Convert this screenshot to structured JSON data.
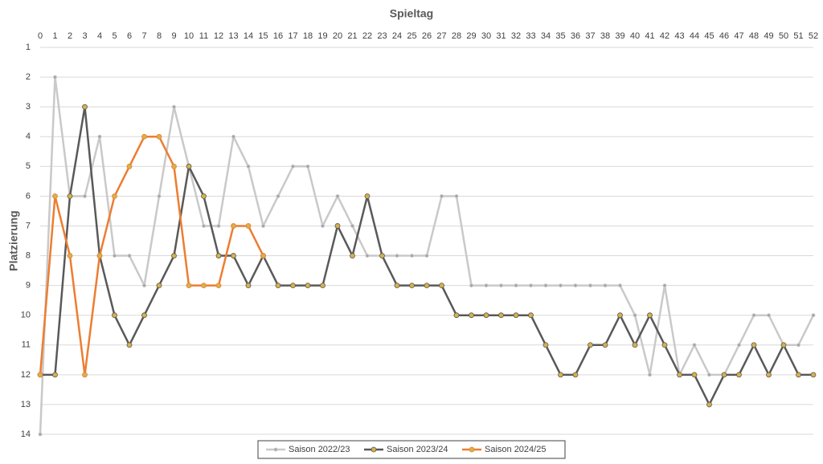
{
  "chart_data": {
    "type": "line",
    "title": "Spieltag",
    "y_label": "Platzierung",
    "x": [
      0,
      1,
      2,
      3,
      4,
      5,
      6,
      7,
      8,
      9,
      10,
      11,
      12,
      13,
      14,
      15,
      16,
      17,
      18,
      19,
      20,
      21,
      22,
      23,
      24,
      25,
      26,
      27,
      28,
      29,
      30,
      31,
      32,
      33,
      34,
      35,
      36,
      37,
      38,
      39,
      40,
      41,
      42,
      43,
      44,
      45,
      46,
      47,
      48,
      49,
      50,
      51,
      52
    ],
    "xlim": [
      0,
      52
    ],
    "xticks": [
      0,
      1,
      2,
      3,
      4,
      5,
      6,
      7,
      8,
      9,
      10,
      11,
      12,
      13,
      14,
      15,
      16,
      17,
      18,
      19,
      20,
      21,
      22,
      23,
      24,
      25,
      26,
      27,
      28,
      29,
      30,
      31,
      32,
      33,
      34,
      35,
      36,
      37,
      38,
      39,
      40,
      41,
      42,
      43,
      44,
      45,
      46,
      47,
      48,
      49,
      50,
      51,
      52
    ],
    "ylim": [
      1,
      14
    ],
    "yticks": [
      1,
      2,
      3,
      4,
      5,
      6,
      7,
      8,
      9,
      10,
      11,
      12,
      13,
      14
    ],
    "y_inverted": true,
    "x_axis_position": "top",
    "grid": true,
    "legend": "bottom",
    "series": [
      {
        "name": "Saison 2022/23",
        "color": "#c9c9c9",
        "marker_color": "#a6a6a6",
        "marker_size": 2,
        "values": [
          14,
          2,
          6,
          6,
          4,
          8,
          8,
          9,
          6,
          3,
          5,
          7,
          7,
          4,
          5,
          7,
          6,
          5,
          5,
          7,
          6,
          7,
          8,
          8,
          8,
          8,
          8,
          6,
          6,
          9,
          9,
          9,
          9,
          9,
          9,
          9,
          9,
          9,
          9,
          9,
          10,
          12,
          9,
          12,
          11,
          12,
          12,
          11,
          10,
          10,
          11,
          11,
          10
        ]
      },
      {
        "name": "Saison 2023/24",
        "color": "#595959",
        "marker_color": "#d6b14a",
        "marker_size": 3,
        "values": [
          12,
          12,
          6,
          3,
          8,
          10,
          11,
          10,
          9,
          8,
          5,
          6,
          8,
          8,
          9,
          8,
          9,
          9,
          9,
          9,
          7,
          8,
          6,
          8,
          9,
          9,
          9,
          9,
          10,
          10,
          10,
          10,
          10,
          10,
          11,
          12,
          12,
          11,
          11,
          10,
          11,
          10,
          11,
          12,
          12,
          13,
          12,
          12,
          11,
          12,
          11,
          12,
          12
        ]
      },
      {
        "name": "Saison 2024/25",
        "color": "#ed7d31",
        "marker_color": "#d6b14a",
        "marker_size": 3,
        "values": [
          12,
          6,
          8,
          12,
          8,
          6,
          5,
          4,
          4,
          5,
          9,
          9,
          9,
          7,
          7,
          8,
          null,
          null,
          null,
          null,
          null,
          null,
          null,
          null,
          null,
          null,
          null,
          null,
          null,
          null,
          null,
          null,
          null,
          null,
          null,
          null,
          null,
          null,
          null,
          null,
          null,
          null,
          null,
          null,
          null,
          null,
          null,
          null,
          null,
          null,
          null,
          null,
          null
        ]
      }
    ]
  }
}
